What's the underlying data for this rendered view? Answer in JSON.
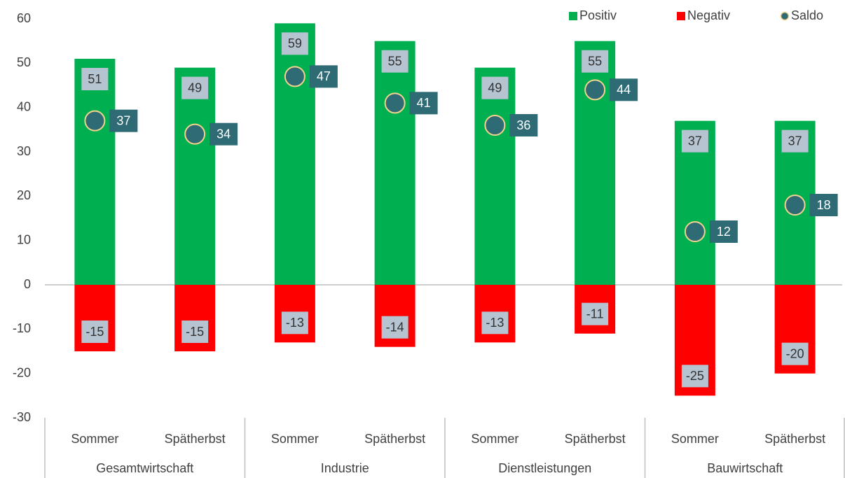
{
  "chart_data": {
    "type": "bar",
    "categories": [
      "Sommer",
      "Spätherbst",
      "Sommer",
      "Spätherbst",
      "Sommer",
      "Spätherbst",
      "Sommer",
      "Spätherbst"
    ],
    "groups": [
      "Gesamtwirtschaft",
      "Industrie",
      "Dienstleistungen",
      "Bauwirtschaft"
    ],
    "series": [
      {
        "name": "Positiv",
        "type": "bar",
        "color": "#00b050",
        "values": [
          51,
          49,
          59,
          55,
          49,
          55,
          37,
          37
        ]
      },
      {
        "name": "Negativ",
        "type": "bar",
        "color": "#ff0000",
        "values": [
          -15,
          -15,
          -13,
          -14,
          -13,
          -11,
          -25,
          -20
        ]
      },
      {
        "name": "Saldo",
        "type": "scatter",
        "color": "#2e6b75",
        "edgecolor": "#f2d28c",
        "values": [
          37,
          34,
          47,
          41,
          36,
          44,
          12,
          18
        ]
      }
    ],
    "ylim": [
      -30,
      60
    ],
    "yticks": [
      -30,
      -20,
      -10,
      0,
      10,
      20,
      30,
      40,
      50,
      60
    ],
    "grid": false,
    "legend": "top-right"
  }
}
